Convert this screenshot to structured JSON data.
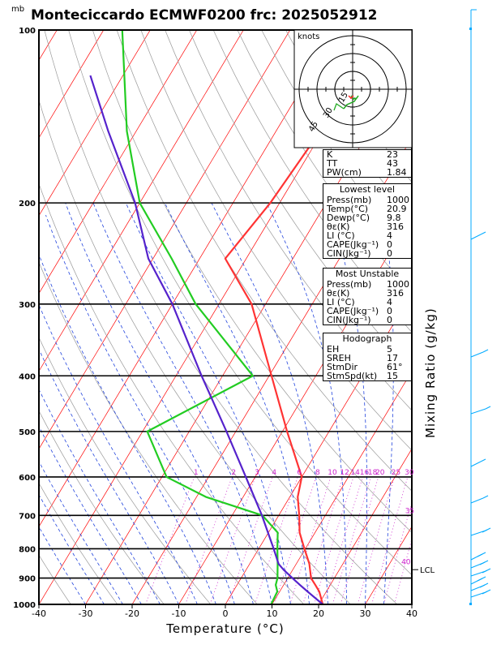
{
  "title": "Monteciccardo ECMWF0200 frc: 2025052912",
  "pressure_unit": "mb",
  "hodograph": {
    "unit_label": "knots",
    "ring_labels": [
      "15",
      "30",
      "45"
    ]
  },
  "indices": {
    "rows": [
      {
        "k": "K",
        "v": "23"
      },
      {
        "k": "TT",
        "v": "43"
      },
      {
        "k": "PW(cm)",
        "v": "1.84"
      }
    ]
  },
  "lowest_level": {
    "header": "Lowest level",
    "rows": [
      {
        "k": "Press(mb)",
        "v": "1000"
      },
      {
        "k": "Temp(°C)",
        "v": "20.9"
      },
      {
        "k": "Dewp(°C)",
        "v": "9.8"
      },
      {
        "k": "θε(K)",
        "v": "316"
      },
      {
        "k": "LI  (°C)",
        "v": "4"
      },
      {
        "k": "CAPE(Jkg⁻¹)",
        "v": "0"
      },
      {
        "k": "CIN(Jkg⁻¹)",
        "v": "0"
      }
    ]
  },
  "most_unstable": {
    "header": "Most Unstable",
    "rows": [
      {
        "k": "Press(mb)",
        "v": "1000"
      },
      {
        "k": "θε(K)",
        "v": "316"
      },
      {
        "k": "LI  (°C)",
        "v": "4"
      },
      {
        "k": "CAPE(Jkg⁻¹)",
        "v": "0"
      },
      {
        "k": "CIN(Jkg⁻¹)",
        "v": "0"
      }
    ]
  },
  "hodograph_panel": {
    "header": "Hodograph",
    "rows": [
      {
        "k": "EH",
        "v": "5"
      },
      {
        "k": "SREH",
        "v": "17"
      },
      {
        "k": "StmDir",
        "v": "61°"
      },
      {
        "k": "StmSpd(kt)",
        "v": "15"
      }
    ]
  },
  "mixing_ratio_label": "Mixing Ratio (g/kg)",
  "colors": {
    "temperature": "#ff3333",
    "dewpoint": "#22cc22",
    "parcel": "#5522cc",
    "isotherm": "#ff0000",
    "dry_adiabat": "#999999",
    "moist_adiabat": "#2244dd",
    "mixing_ratio": "#cc22cc",
    "wind": "#00aaff"
  },
  "chart_data": {
    "type": "line",
    "plot": "skew-T log-P",
    "xlabel": "Temperature (°C)",
    "ylabel": "mb",
    "x_ticks": [
      -40,
      -30,
      -20,
      -10,
      0,
      10,
      20,
      30,
      40
    ],
    "pressure_levels": [
      100,
      200,
      300,
      400,
      500,
      600,
      700,
      800,
      900,
      1000
    ],
    "x_range": [
      -40,
      40
    ],
    "pressure_range": [
      100,
      1000
    ],
    "series": [
      {
        "name": "Temperature",
        "pressure": [
          1000,
          950,
          925,
          900,
          850,
          800,
          750,
          700,
          650,
          600,
          500,
          400,
          300,
          250,
          200,
          150,
          100
        ],
        "temp": [
          20.9,
          18.5,
          16.8,
          15.0,
          12.8,
          9.8,
          6.7,
          4.4,
          1.7,
          0.0,
          -9.0,
          -19.5,
          -33.0,
          -44.5,
          -42.0,
          -40.5,
          -37.0
        ]
      },
      {
        "name": "Dewpoint",
        "pressure": [
          1000,
          950,
          925,
          900,
          850,
          800,
          750,
          700,
          650,
          600,
          500,
          400,
          300,
          250,
          200,
          150,
          100
        ],
        "temp": [
          9.8,
          9.5,
          8.3,
          7.8,
          6.0,
          4.0,
          2.0,
          -3.5,
          -18.0,
          -29.0,
          -39.0,
          -23.5,
          -45.0,
          -56.0,
          -70.0,
          -82.0,
          -96.0
        ]
      },
      {
        "name": "Parcel",
        "pressure": [
          1000,
          950,
          925,
          900,
          870,
          850,
          800,
          700,
          600,
          500,
          400,
          300,
          250,
          200,
          150,
          120
        ],
        "temp": [
          20.9,
          16.0,
          13.5,
          11.0,
          8.0,
          6.2,
          3.2,
          -3.6,
          -12.0,
          -22.0,
          -34.5,
          -50.0,
          -61.0,
          -71.0,
          -86.0,
          -97.0
        ]
      }
    ],
    "mixing_ratio_labels": [
      "1",
      "2",
      "3",
      "4",
      "6",
      "8",
      "10",
      "12",
      "14",
      "16",
      "18",
      "20",
      "25",
      "30",
      "35",
      "40"
    ],
    "lcl_label": "LCL",
    "lcl_pressure": 870
  }
}
